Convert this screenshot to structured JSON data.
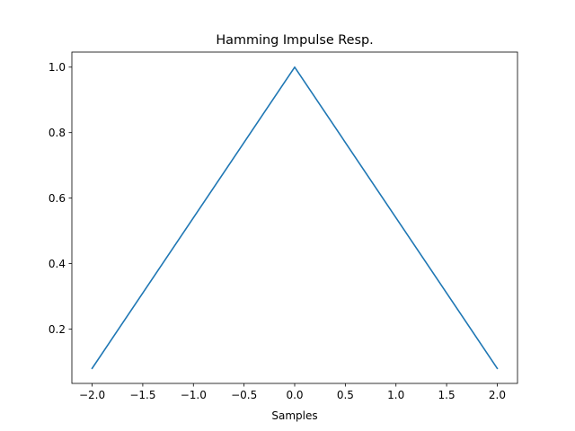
{
  "chart_data": {
    "type": "line",
    "title": "Hamming Impulse Resp.",
    "xlabel": "Samples",
    "ylabel": "",
    "xlim": [
      -2.2,
      2.2
    ],
    "ylim": [
      0.034,
      1.046
    ],
    "x_ticks": [
      -2.0,
      -1.5,
      -1.0,
      -0.5,
      0.0,
      0.5,
      1.0,
      1.5,
      2.0
    ],
    "x_tick_labels": [
      "−2.0",
      "−1.5",
      "−1.0",
      "−0.5",
      "0.0",
      "0.5",
      "1.0",
      "1.5",
      "2.0"
    ],
    "y_ticks": [
      0.2,
      0.4,
      0.6,
      0.8,
      1.0
    ],
    "y_tick_labels": [
      "0.2",
      "0.4",
      "0.6",
      "0.8",
      "1.0"
    ],
    "grid": false,
    "series": [
      {
        "x": [
          -2.0,
          0.0,
          2.0
        ],
        "y": [
          0.08,
          1.0,
          0.08
        ],
        "color": "#1f77b4"
      }
    ]
  }
}
